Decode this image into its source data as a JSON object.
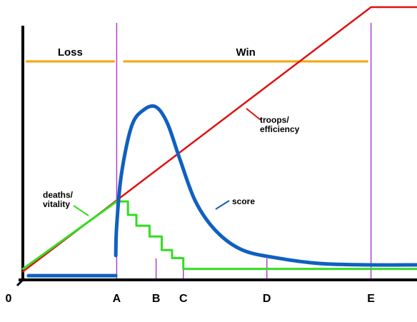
{
  "chart_data": {
    "type": "line",
    "title": "",
    "xlabel": "",
    "ylabel": "",
    "x_ticks": [
      "0",
      "A",
      "B",
      "C",
      "D",
      "E"
    ],
    "x_tick_values": [
      0,
      1,
      1.42,
      1.71,
      2.6,
      3.71
    ],
    "xlim": [
      0,
      4.2
    ],
    "ylim": [
      0,
      100
    ],
    "vertical_markers": [
      {
        "x": 1,
        "label": "A",
        "full_height": true
      },
      {
        "x": 1.42,
        "label": "B"
      },
      {
        "x": 1.71,
        "label": "C"
      },
      {
        "x": 2.6,
        "label": "D"
      },
      {
        "x": 3.71,
        "label": "E",
        "full_height": true
      }
    ],
    "bands": [
      {
        "name": "Loss",
        "x_start": 0.03,
        "x_end": 0.98,
        "color": "#f5a300"
      },
      {
        "name": "Win",
        "x_start": 1.07,
        "x_end": 3.68,
        "color": "#f5a300"
      }
    ],
    "series": [
      {
        "name": "troops/ efficiency",
        "color": "#e01010",
        "x": [
          0,
          3.71,
          4.2
        ],
        "y": [
          2,
          100,
          100
        ]
      },
      {
        "name": "deaths/ vitality",
        "color": "#33dd22",
        "x": [
          0,
          1,
          1.12,
          1.12,
          1.21,
          1.21,
          1.35,
          1.35,
          1.48,
          1.48,
          1.59,
          1.59,
          1.71,
          1.71,
          4.2
        ],
        "y": [
          3,
          28,
          28,
          23,
          23,
          19,
          19,
          15,
          15,
          10,
          10,
          7,
          7,
          3,
          3
        ]
      },
      {
        "name": "score",
        "color": "#1060c0",
        "x": [
          0.06,
          0.99,
          0.99,
          1.0,
          1.05,
          1.16,
          1.29,
          1.42,
          1.54,
          1.67,
          1.84,
          2.06,
          2.34,
          2.72,
          3.17,
          3.71,
          4.2
        ],
        "y": [
          0.5,
          0.5,
          8,
          19,
          38,
          56,
          62,
          63,
          57,
          44,
          28,
          17,
          10,
          7,
          5,
          4.5,
          4.5
        ]
      }
    ],
    "annotations": [
      {
        "text": "troops/ efficiency",
        "series": "troops/ efficiency"
      },
      {
        "text": "deaths/ vitality",
        "series": "deaths/ vitality"
      },
      {
        "text": "score",
        "series": "score"
      }
    ],
    "grid": false,
    "legend": "none"
  }
}
